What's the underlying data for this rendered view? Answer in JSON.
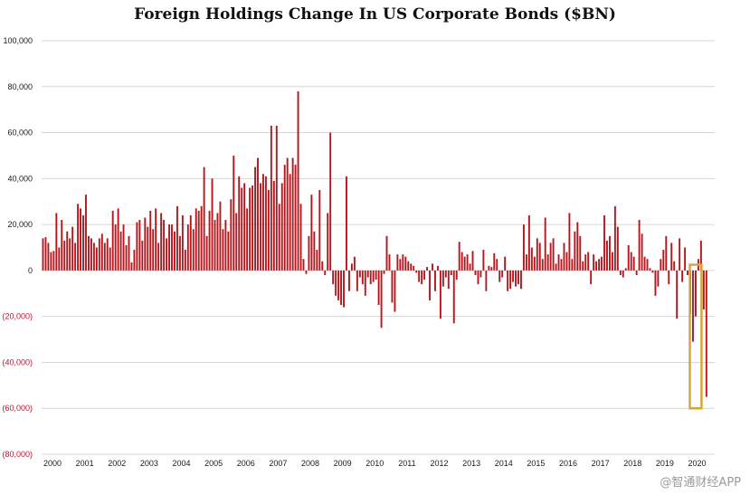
{
  "chart_data": {
    "type": "bar",
    "title": "Foreign Holdings Change In US Corporate Bonds ($BN)",
    "xlabel": "",
    "ylabel": "",
    "ylim": [
      -80000,
      100000
    ],
    "y_ticks": [
      100000,
      80000,
      60000,
      40000,
      20000,
      0,
      -20000,
      -40000,
      -60000,
      -80000
    ],
    "y_tick_labels": [
      "100,000",
      "80,000",
      "60,000",
      "40,000",
      "20,000",
      "0",
      "(20,000)",
      "(40,000)",
      "(60,000)",
      "(80,000)"
    ],
    "x_tick_labels": [
      "2000",
      "2001",
      "2002",
      "2003",
      "2004",
      "2005",
      "2006",
      "2007",
      "2008",
      "2009",
      "2010",
      "2011",
      "2012",
      "2013",
      "2014",
      "2015",
      "2016",
      "2017",
      "2018",
      "2019",
      "2020"
    ],
    "start": "2000-01",
    "frequency": "monthly",
    "values": [
      14000,
      14500,
      12000,
      8000,
      8500,
      25000,
      10000,
      22000,
      13000,
      17000,
      14000,
      19000,
      12000,
      29000,
      27000,
      24000,
      33000,
      15000,
      14000,
      12000,
      10000,
      14000,
      16000,
      12000,
      14000,
      10000,
      26000,
      20000,
      27000,
      17000,
      20000,
      11000,
      15000,
      3500,
      9000,
      21000,
      22000,
      13000,
      23000,
      19000,
      26000,
      18000,
      27000,
      12000,
      25000,
      22000,
      14000,
      20000,
      20000,
      17000,
      28000,
      15000,
      24000,
      9000,
      20000,
      24000,
      18000,
      27000,
      26000,
      28000,
      45000,
      15000,
      26000,
      40000,
      22000,
      25000,
      30000,
      18000,
      22000,
      17000,
      31000,
      50000,
      25000,
      41000,
      36000,
      38000,
      27000,
      36000,
      37000,
      45000,
      49000,
      38000,
      42000,
      41000,
      35000,
      63000,
      39000,
      63000,
      29000,
      38000,
      46000,
      49000,
      42000,
      49000,
      46000,
      78000,
      29000,
      5000,
      -1500,
      15000,
      33000,
      17000,
      9000,
      35000,
      4000,
      -2000,
      25000,
      60000,
      -6000,
      -11000,
      -13000,
      -15000,
      -16000,
      41000,
      -9000,
      3000,
      6000,
      -9000,
      -3000,
      -6000,
      -11000,
      -3000,
      -6000,
      -5000,
      -4000,
      -15000,
      -25000,
      -1500,
      15000,
      7000,
      -14000,
      -18000,
      7000,
      5000,
      7000,
      6000,
      4000,
      3000,
      2000,
      -1000,
      -5000,
      -6000,
      -4000,
      1500,
      -13000,
      3000,
      -9000,
      2000,
      -21000,
      -7000,
      -3000,
      -8000,
      -2000,
      -23000,
      -4000,
      12500,
      8000,
      6000,
      7000,
      3000,
      8500,
      -2000,
      -6000,
      -3000,
      9000,
      -9000,
      2000,
      1500,
      7500,
      5000,
      -5000,
      -3000,
      6000,
      -9000,
      -8000,
      -5000,
      -7000,
      -6000,
      -8000,
      20000,
      7000,
      24000,
      10000,
      6000,
      14000,
      12000,
      5000,
      23000,
      7000,
      12000,
      14000,
      3000,
      7000,
      5000,
      12000,
      8000,
      25000,
      5000,
      17000,
      21000,
      15000,
      4000,
      7000,
      8000,
      -6000,
      7000,
      4000,
      5000,
      6000,
      24000,
      13000,
      15000,
      8000,
      28000,
      19000,
      -2000,
      -3000,
      1000,
      11000,
      8000,
      6000,
      -2000,
      22000,
      16000,
      6000,
      5000,
      1000,
      -1000,
      -11000,
      -7000,
      5000,
      9000,
      15000,
      -6000,
      12000,
      4000,
      -21000,
      14000,
      -5000,
      10000,
      -2000,
      -19000,
      -31000,
      -20000,
      5000,
      13000,
      -17000,
      -55000
    ],
    "highlight": {
      "from": "2020-03",
      "to": "2020-05",
      "ylim": [
        -60000,
        2500
      ],
      "color": "#d9a538"
    },
    "bar_color": "#b7161d",
    "negative_label_color": "#c8102e",
    "grid": true
  },
  "watermark": "@智通财经APP"
}
